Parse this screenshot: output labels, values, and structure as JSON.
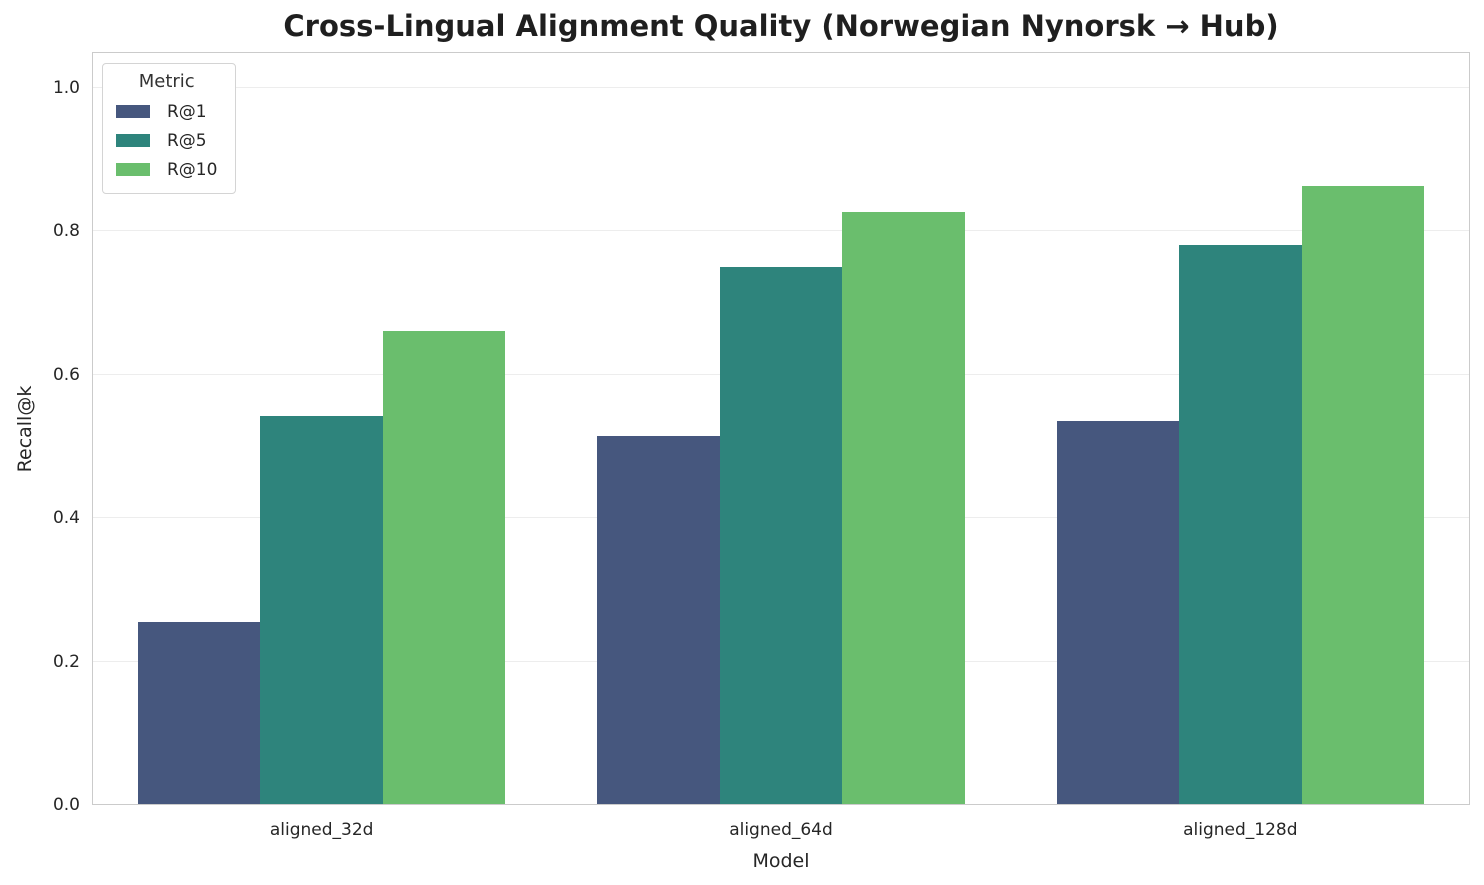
{
  "chart_data": {
    "type": "bar",
    "title": "Cross-Lingual Alignment Quality (Norwegian Nynorsk → Hub)",
    "xlabel": "Model",
    "ylabel": "Recall@k",
    "categories": [
      "aligned_32d",
      "aligned_64d",
      "aligned_128d"
    ],
    "series": [
      {
        "name": "R@1",
        "color": "#46577e",
        "values": [
          0.255,
          0.514,
          0.536
        ]
      },
      {
        "name": "R@5",
        "color": "#2e847c",
        "values": [
          0.542,
          0.75,
          0.781
        ]
      },
      {
        "name": "R@10",
        "color": "#6abe6d",
        "values": [
          0.661,
          0.827,
          0.863
        ]
      }
    ],
    "ylim": [
      0,
      1.05
    ],
    "yticks": [
      0.0,
      0.2,
      0.4,
      0.6,
      0.8,
      1.0
    ],
    "ytick_labels": [
      "0.0",
      "0.2",
      "0.4",
      "0.6",
      "0.8",
      "1.0"
    ],
    "grid": true,
    "grid_axis": "y",
    "legend": {
      "title": "Metric",
      "position": "upper left"
    },
    "style": {
      "background": "#ffffff",
      "gridline_color": "#ededed",
      "spine_color": "#cbcbcb",
      "text_color": "#262626"
    }
  }
}
